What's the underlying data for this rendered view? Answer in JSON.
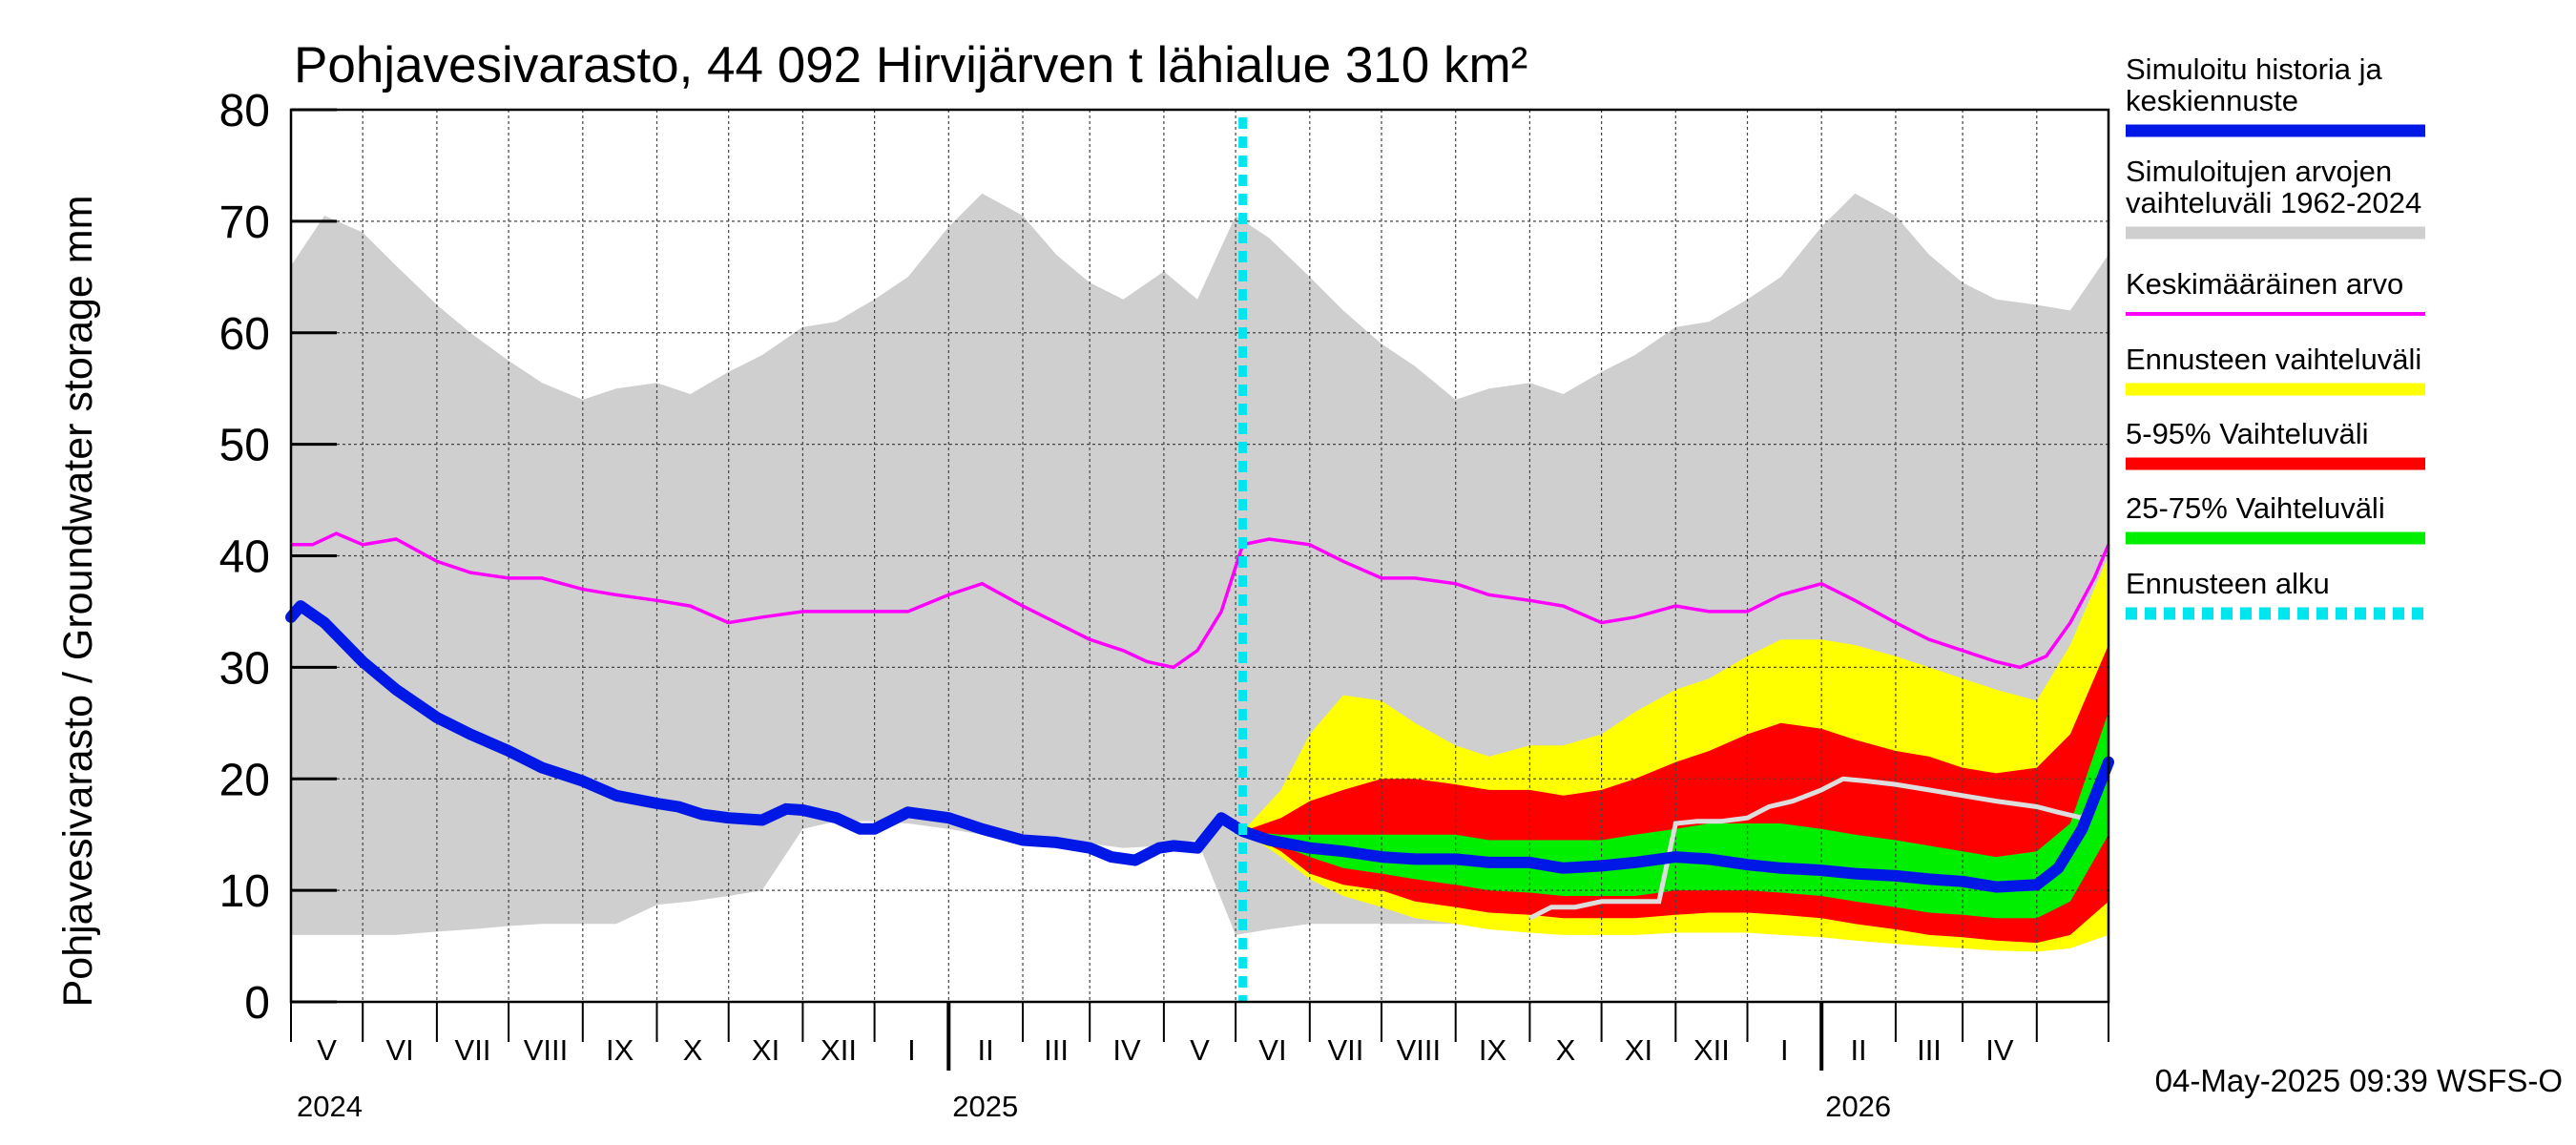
{
  "chart_data": {
    "type": "area",
    "title": "Pohjavesivarasto, 44 092 Hirvijärven t lähialue 310 km²",
    "ylabel": "Pohjavesivarasto / Groundwater storage   mm",
    "ylim": [
      0,
      80
    ],
    "y_ticks": [
      "0",
      "10",
      "20",
      "30",
      "40",
      "50",
      "60",
      "70",
      "80"
    ],
    "x_range": [
      "2024-04-01",
      "2026-05-01"
    ],
    "months": [
      "V",
      "VI",
      "VII",
      "VIII",
      "IX",
      "X",
      "XI",
      "XII",
      "I",
      "II",
      "III",
      "IV",
      "V",
      "VI",
      "VII",
      "VIII",
      "IX",
      "X",
      "XI",
      "XII",
      "I",
      "II",
      "III",
      "IV"
    ],
    "years": [
      "2024",
      "2025",
      "2026"
    ],
    "grid": true,
    "legend_position": "right",
    "legend": [
      {
        "label_lines": [
          "Simuloitu historia ja",
          "keskiennuste"
        ],
        "color": "#0018e6"
      },
      {
        "label_lines": [
          "Simuloitujen arvojen",
          "vaihteluväli 1962-2024"
        ],
        "color": "#cfcfcf"
      },
      {
        "label_lines": [
          "Keskimääräinen arvo"
        ],
        "color": "#ff00ff"
      },
      {
        "label_lines": [
          "Ennusteen vaihteluväli"
        ],
        "color": "#ffff00"
      },
      {
        "label_lines": [
          "5-95% Vaihteluväli"
        ],
        "color": "#ff0000"
      },
      {
        "label_lines": [
          "25-75% Vaihteluväli"
        ],
        "color": "#00ee00"
      },
      {
        "label_lines": [
          "Ennusteen alku"
        ],
        "color": "#00e5ee"
      }
    ],
    "forecast_start": "2025-05-04",
    "timestamp": "04-May-2025 09:39 WSFS-O",
    "series": [
      {
        "name": "Simuloitu historia ja keskiennuste",
        "color": "#0018e6",
        "x": [
          "2024-04-01",
          "2024-04-05",
          "2024-04-15",
          "2024-05-01",
          "2024-05-15",
          "2024-06-01",
          "2024-06-15",
          "2024-07-01",
          "2024-07-15",
          "2024-08-01",
          "2024-08-15",
          "2024-09-01",
          "2024-09-10",
          "2024-09-20",
          "2024-10-01",
          "2024-10-15",
          "2024-10-25",
          "2024-11-01",
          "2024-11-15",
          "2024-11-25",
          "2024-12-01",
          "2024-12-15",
          "2025-01-01",
          "2025-01-15",
          "2025-02-01",
          "2025-02-15",
          "2025-03-01",
          "2025-03-10",
          "2025-03-20",
          "2025-03-30",
          "2025-04-05",
          "2025-04-15",
          "2025-04-25",
          "2025-05-04",
          "2025-05-15",
          "2025-06-01",
          "2025-06-15",
          "2025-07-01",
          "2025-07-15",
          "2025-08-01",
          "2025-08-15",
          "2025-09-01",
          "2025-09-15",
          "2025-10-01",
          "2025-10-15",
          "2025-11-01",
          "2025-11-15",
          "2025-12-01",
          "2025-12-15",
          "2026-01-01",
          "2026-01-15",
          "2026-02-01",
          "2026-02-15",
          "2026-03-01",
          "2026-03-15",
          "2026-04-01",
          "2026-04-10",
          "2026-04-20",
          "2026-05-01"
        ],
        "y": [
          34.5,
          35.5,
          34,
          30.5,
          28,
          25.5,
          24,
          22.5,
          21,
          19.8,
          18.5,
          17.8,
          17.5,
          16.8,
          16.5,
          16.3,
          17.3,
          17.2,
          16.5,
          15.5,
          15.5,
          17,
          16.5,
          15.5,
          14.5,
          14.3,
          13.8,
          13,
          12.7,
          13.8,
          14,
          13.8,
          16.5,
          15.3,
          14.5,
          13.8,
          13.5,
          13,
          12.8,
          12.8,
          12.5,
          12.5,
          12,
          12.2,
          12.5,
          13,
          12.8,
          12.3,
          12,
          11.8,
          11.5,
          11.3,
          11,
          10.8,
          10.3,
          10.5,
          12,
          15.5,
          21.5
        ]
      },
      {
        "name": "Keskimääräinen arvo",
        "color": "#ff00ff",
        "x": [
          "2024-04-01",
          "2024-04-10",
          "2024-04-20",
          "2024-05-01",
          "2024-05-15",
          "2024-06-01",
          "2024-06-15",
          "2024-07-01",
          "2024-07-15",
          "2024-08-01",
          "2024-08-15",
          "2024-09-01",
          "2024-09-15",
          "2024-10-01",
          "2024-10-15",
          "2024-11-01",
          "2024-11-15",
          "2024-12-01",
          "2024-12-15",
          "2025-01-01",
          "2025-01-15",
          "2025-02-01",
          "2025-02-15",
          "2025-03-01",
          "2025-03-15",
          "2025-03-25",
          "2025-04-05",
          "2025-04-15",
          "2025-04-25",
          "2025-05-04",
          "2025-05-15",
          "2025-06-01",
          "2025-06-15",
          "2025-07-01",
          "2025-07-15",
          "2025-08-01",
          "2025-08-15",
          "2025-09-01",
          "2025-09-15",
          "2025-10-01",
          "2025-10-15",
          "2025-11-01",
          "2025-11-15",
          "2025-12-01",
          "2025-12-15",
          "2026-01-01",
          "2026-01-15",
          "2026-02-01",
          "2026-02-15",
          "2026-03-01",
          "2026-03-15",
          "2026-03-25",
          "2026-04-05",
          "2026-04-15",
          "2026-04-25",
          "2026-05-01"
        ],
        "y": [
          41,
          41,
          42,
          41,
          41.5,
          39.5,
          38.5,
          38,
          38,
          37,
          36.5,
          36,
          35.5,
          34,
          34.5,
          35,
          35,
          35,
          35,
          36.5,
          37.5,
          35.5,
          34,
          32.5,
          31.5,
          30.5,
          30,
          31.5,
          35,
          41,
          41.5,
          41,
          39.5,
          38,
          38,
          37.5,
          36.5,
          36,
          35.5,
          34,
          34.5,
          35.5,
          35,
          35,
          36.5,
          37.5,
          36,
          34,
          32.5,
          31.5,
          30.5,
          30,
          31,
          34,
          38,
          41
        ]
      }
    ],
    "bands": [
      {
        "name": "Simuloitujen arvojen vaihteluväli 1962-2024",
        "color": "#cfcfcf",
        "x": [
          "2024-04-01",
          "2024-04-15",
          "2024-05-01",
          "2024-05-15",
          "2024-06-01",
          "2024-06-15",
          "2024-07-01",
          "2024-07-15",
          "2024-08-01",
          "2024-08-15",
          "2024-09-01",
          "2024-09-15",
          "2024-10-01",
          "2024-10-15",
          "2024-11-01",
          "2024-11-15",
          "2024-12-01",
          "2024-12-15",
          "2025-01-01",
          "2025-01-15",
          "2025-02-01",
          "2025-02-15",
          "2025-03-01",
          "2025-03-15",
          "2025-04-01",
          "2025-04-15",
          "2025-05-01",
          "2025-05-15",
          "2025-06-01",
          "2025-06-15",
          "2025-07-01",
          "2025-07-15",
          "2025-08-01",
          "2025-08-15",
          "2025-09-01",
          "2025-09-15",
          "2025-10-01",
          "2025-10-15",
          "2025-11-01",
          "2025-11-15",
          "2025-12-01",
          "2025-12-15",
          "2026-01-01",
          "2026-01-15",
          "2026-02-01",
          "2026-02-15",
          "2026-03-01",
          "2026-03-15",
          "2026-04-01",
          "2026-04-15",
          "2026-05-01"
        ],
        "upper": [
          66,
          70.5,
          69,
          66,
          62.5,
          60,
          57.5,
          55.5,
          54,
          55,
          55.5,
          54.5,
          56.5,
          58,
          60.5,
          61,
          63,
          65,
          69.5,
          72.5,
          70.5,
          67,
          64.5,
          63,
          65.5,
          63,
          70.5,
          68.5,
          65,
          62,
          59,
          57,
          54,
          55,
          55.5,
          54.5,
          56.5,
          58,
          60.5,
          61,
          63,
          65,
          69.5,
          72.5,
          70.5,
          67,
          64.5,
          63,
          62.5,
          62,
          67
        ],
        "lower": [
          6,
          6,
          6,
          6,
          6.3,
          6.5,
          6.8,
          7,
          7,
          7,
          8.7,
          9,
          9.5,
          10,
          15.5,
          16.2,
          16.2,
          16,
          15.5,
          15,
          14.5,
          14,
          14.2,
          13.8,
          14,
          14.5,
          6,
          6.5,
          7,
          7,
          7,
          7,
          7,
          7,
          7,
          7,
          7,
          7,
          7,
          7,
          7,
          7,
          7,
          7,
          7,
          7,
          7,
          7,
          7,
          7,
          6
        ]
      },
      {
        "name": "Ennusteen vaihteluväli",
        "color": "#ffff00",
        "x": [
          "2025-05-04",
          "2025-05-20",
          "2025-06-01",
          "2025-06-15",
          "2025-07-01",
          "2025-07-15",
          "2025-08-01",
          "2025-08-15",
          "2025-09-01",
          "2025-09-15",
          "2025-10-01",
          "2025-10-15",
          "2025-11-01",
          "2025-11-15",
          "2025-12-01",
          "2025-12-15",
          "2026-01-01",
          "2026-01-15",
          "2026-02-01",
          "2026-02-15",
          "2026-03-01",
          "2026-03-15",
          "2026-04-01",
          "2026-04-15",
          "2026-05-01"
        ],
        "upper": [
          15.3,
          19,
          24,
          27.5,
          27,
          25,
          23,
          22,
          23,
          23,
          24,
          26,
          28,
          29,
          31,
          32.5,
          32.5,
          32,
          31,
          30,
          29,
          28,
          27,
          32,
          40
        ],
        "lower": [
          15.3,
          13,
          11,
          9.5,
          8.5,
          7.5,
          7,
          6.5,
          6.2,
          6,
          6,
          6,
          6.2,
          6.2,
          6.2,
          6,
          5.8,
          5.5,
          5.2,
          5,
          4.8,
          4.6,
          4.5,
          4.8,
          6
        ]
      },
      {
        "name": "5-95% Vaihteluväli",
        "color": "#ff0000",
        "x": [
          "2025-05-04",
          "2025-05-20",
          "2025-06-01",
          "2025-06-15",
          "2025-07-01",
          "2025-07-15",
          "2025-08-01",
          "2025-08-15",
          "2025-09-01",
          "2025-09-15",
          "2025-10-01",
          "2025-10-15",
          "2025-11-01",
          "2025-11-15",
          "2025-12-01",
          "2025-12-15",
          "2026-01-01",
          "2026-01-15",
          "2026-02-01",
          "2026-02-15",
          "2026-03-01",
          "2026-03-15",
          "2026-04-01",
          "2026-04-15",
          "2026-05-01"
        ],
        "upper": [
          15.3,
          16.5,
          18,
          19,
          20,
          20,
          19.5,
          19,
          19,
          18.5,
          19,
          20,
          21.5,
          22.5,
          24,
          25,
          24.5,
          23.5,
          22.5,
          22,
          21,
          20.5,
          21,
          24,
          32
        ],
        "lower": [
          15.3,
          13.5,
          11.5,
          10.5,
          10,
          9,
          8.5,
          8,
          7.8,
          7.5,
          7.5,
          7.5,
          7.8,
          8,
          8,
          7.8,
          7.5,
          7,
          6.5,
          6,
          5.8,
          5.5,
          5.3,
          6,
          9
        ]
      },
      {
        "name": "25-75% Vaihteluväli",
        "color": "#00ee00",
        "x": [
          "2025-05-04",
          "2025-05-20",
          "2025-06-01",
          "2025-06-15",
          "2025-07-01",
          "2025-07-15",
          "2025-08-01",
          "2025-08-15",
          "2025-09-01",
          "2025-09-15",
          "2025-10-01",
          "2025-10-15",
          "2025-11-01",
          "2025-11-15",
          "2025-12-01",
          "2025-12-15",
          "2026-01-01",
          "2026-01-15",
          "2026-02-01",
          "2026-02-15",
          "2026-03-01",
          "2026-03-15",
          "2026-04-01",
          "2026-04-15",
          "2026-05-01"
        ],
        "upper": [
          15.3,
          15,
          15,
          15,
          15,
          15,
          15,
          14.5,
          14.5,
          14.5,
          14.5,
          15,
          15.5,
          16,
          16,
          16,
          15.5,
          15,
          14.5,
          14,
          13.5,
          13,
          13.5,
          16,
          26
        ],
        "lower": [
          15.3,
          14,
          13,
          12,
          11.5,
          11,
          10.5,
          10,
          9.8,
          9.5,
          9.5,
          9.5,
          10,
          10,
          10,
          9.8,
          9.5,
          9,
          8.5,
          8,
          7.8,
          7.5,
          7.5,
          9,
          15
        ]
      }
    ],
    "extra_lines": [
      {
        "color": "#dddddd",
        "x": [
          "2025-09-01",
          "2025-09-10",
          "2025-09-20",
          "2025-10-01",
          "2025-10-15",
          "2025-10-25",
          "2025-11-01",
          "2025-11-10",
          "2025-11-20",
          "2025-12-01",
          "2025-12-10",
          "2025-12-20",
          "2026-01-01",
          "2026-01-10",
          "2026-01-20",
          "2026-02-01",
          "2026-02-15",
          "2026-03-01",
          "2026-03-15",
          "2026-04-01",
          "2026-04-10",
          "2026-04-20",
          "2026-05-01"
        ],
        "y": [
          7.5,
          8.5,
          8.5,
          9,
          9,
          9,
          16,
          16.2,
          16.2,
          16.5,
          17.5,
          18,
          19,
          20,
          19.8,
          19.5,
          19,
          18.5,
          18,
          17.5,
          17,
          16.5,
          21
        ]
      }
    ]
  }
}
